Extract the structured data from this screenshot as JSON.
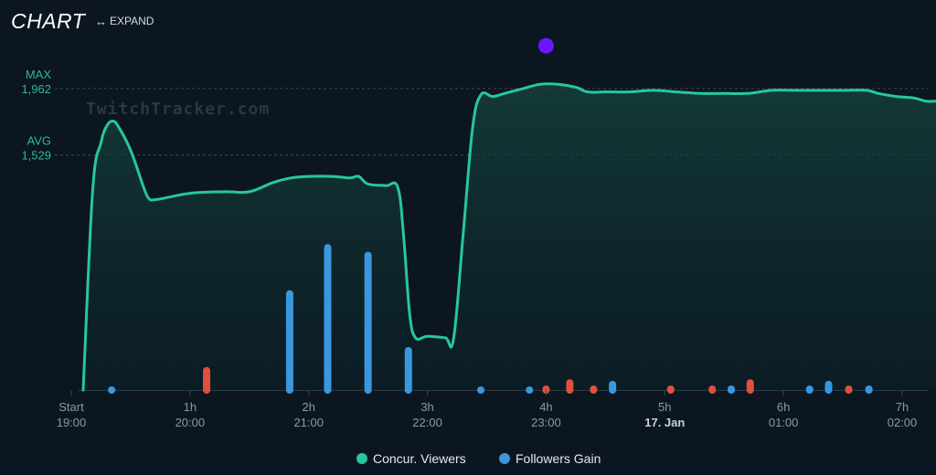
{
  "header": {
    "title": "CHART",
    "expand_label": "EXPAND",
    "expand_icon": "double-arrow-icon"
  },
  "watermark": "TwitchTracker.com",
  "chart_data": {
    "type": "line",
    "x_unit": "hours_since_start",
    "xlim": [
      0,
      7.3
    ],
    "ylim": [
      0,
      2300
    ],
    "x_ticks": [
      {
        "x": 0,
        "label": "Start",
        "time": "19:00",
        "bold": false
      },
      {
        "x": 1,
        "label": "1h",
        "time": "20:00",
        "bold": false
      },
      {
        "x": 2,
        "label": "2h",
        "time": "21:00",
        "bold": false
      },
      {
        "x": 3,
        "label": "3h",
        "time": "22:00",
        "bold": false
      },
      {
        "x": 4,
        "label": "4h",
        "time": "23:00",
        "bold": false
      },
      {
        "x": 5,
        "label": "5h",
        "time": "17. Jan",
        "bold": true
      },
      {
        "x": 6,
        "label": "6h",
        "time": "01:00",
        "bold": false
      },
      {
        "x": 7,
        "label": "7h",
        "time": "02:00",
        "bold": false
      }
    ],
    "reference_lines": [
      {
        "name": "MAX",
        "value": 1962,
        "label": "MAX",
        "value_label": "1,962"
      },
      {
        "name": "AVG",
        "value": 1529,
        "label": "AVG",
        "value_label": "1,529"
      }
    ],
    "marker": {
      "x": 4.0,
      "value": 2240,
      "color": "#6a17ff"
    },
    "series": [
      {
        "name": "Concur. Viewers",
        "color": "#27c79b",
        "points": [
          [
            0.1,
            0
          ],
          [
            0.18,
            1300
          ],
          [
            0.25,
            1610
          ],
          [
            0.3,
            1720
          ],
          [
            0.35,
            1750
          ],
          [
            0.4,
            1710
          ],
          [
            0.5,
            1560
          ],
          [
            0.6,
            1340
          ],
          [
            0.65,
            1250
          ],
          [
            0.72,
            1240
          ],
          [
            1.0,
            1280
          ],
          [
            1.3,
            1290
          ],
          [
            1.5,
            1290
          ],
          [
            1.7,
            1350
          ],
          [
            1.85,
            1380
          ],
          [
            2.0,
            1390
          ],
          [
            2.2,
            1390
          ],
          [
            2.35,
            1380
          ],
          [
            2.42,
            1390
          ],
          [
            2.5,
            1340
          ],
          [
            2.65,
            1330
          ],
          [
            2.75,
            1320
          ],
          [
            2.8,
            1000
          ],
          [
            2.85,
            500
          ],
          [
            2.9,
            340
          ],
          [
            3.0,
            350
          ],
          [
            3.15,
            340
          ],
          [
            3.22,
            330
          ],
          [
            3.3,
            1000
          ],
          [
            3.38,
            1700
          ],
          [
            3.45,
            1920
          ],
          [
            3.55,
            1910
          ],
          [
            3.65,
            1930
          ],
          [
            3.8,
            1960
          ],
          [
            3.95,
            1990
          ],
          [
            4.1,
            1990
          ],
          [
            4.25,
            1970
          ],
          [
            4.35,
            1940
          ],
          [
            4.5,
            1940
          ],
          [
            4.7,
            1940
          ],
          [
            4.9,
            1950
          ],
          [
            5.1,
            1940
          ],
          [
            5.3,
            1930
          ],
          [
            5.5,
            1930
          ],
          [
            5.7,
            1930
          ],
          [
            5.9,
            1950
          ],
          [
            6.1,
            1950
          ],
          [
            6.3,
            1950
          ],
          [
            6.5,
            1950
          ],
          [
            6.7,
            1950
          ],
          [
            6.8,
            1930
          ],
          [
            6.95,
            1910
          ],
          [
            7.1,
            1900
          ],
          [
            7.2,
            1880
          ],
          [
            7.3,
            1880
          ]
        ]
      }
    ],
    "followers_series": {
      "name": "Followers Gain",
      "positive_color": "#3a97de",
      "negative_color": "#e0503c",
      "bars": [
        {
          "x": 0.34,
          "value": 20,
          "sign": "positive"
        },
        {
          "x": 1.14,
          "value": 150,
          "sign": "negative"
        },
        {
          "x": 1.84,
          "value": 650,
          "sign": "positive"
        },
        {
          "x": 2.16,
          "value": 950,
          "sign": "positive"
        },
        {
          "x": 2.5,
          "value": 900,
          "sign": "positive"
        },
        {
          "x": 2.84,
          "value": 280,
          "sign": "positive"
        },
        {
          "x": 3.45,
          "value": 20,
          "sign": "positive"
        },
        {
          "x": 3.86,
          "value": 20,
          "sign": "positive"
        },
        {
          "x": 4.0,
          "value": 30,
          "sign": "negative"
        },
        {
          "x": 4.2,
          "value": 70,
          "sign": "negative"
        },
        {
          "x": 4.4,
          "value": 30,
          "sign": "negative"
        },
        {
          "x": 4.56,
          "value": 60,
          "sign": "positive"
        },
        {
          "x": 5.05,
          "value": 30,
          "sign": "negative"
        },
        {
          "x": 5.4,
          "value": 30,
          "sign": "negative"
        },
        {
          "x": 5.56,
          "value": 30,
          "sign": "positive"
        },
        {
          "x": 5.72,
          "value": 70,
          "sign": "negative"
        },
        {
          "x": 6.22,
          "value": 30,
          "sign": "positive"
        },
        {
          "x": 6.38,
          "value": 60,
          "sign": "positive"
        },
        {
          "x": 6.55,
          "value": 30,
          "sign": "negative"
        },
        {
          "x": 6.72,
          "value": 30,
          "sign": "positive"
        }
      ]
    },
    "legend": [
      {
        "name": "Concur. Viewers",
        "color": "#27c79b"
      },
      {
        "name": "Followers Gain",
        "color": "#3a97de"
      }
    ],
    "legend_position": "bottom-center"
  }
}
